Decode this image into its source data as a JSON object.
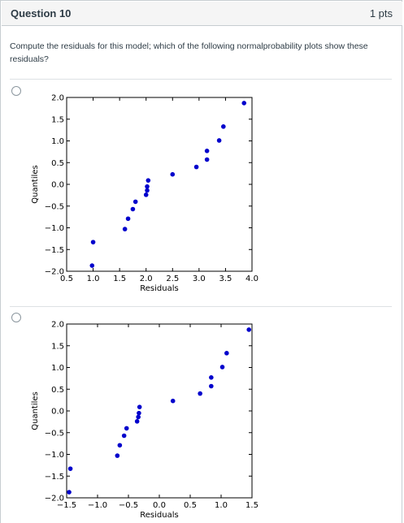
{
  "question": {
    "title": "Question 10",
    "points": "1 pts",
    "prompt": "Compute the residuals for this model; which of the following normalprobability plots show these residuals?"
  },
  "options": [
    {
      "chart_data": {
        "type": "scatter",
        "xlabel": "Residuals",
        "ylabel": "Quantiles",
        "xlim": [
          0.5,
          4.0
        ],
        "ylim": [
          -2.0,
          2.0
        ],
        "xticks": [
          "0.5",
          "1.0",
          "1.5",
          "2.0",
          "2.5",
          "3.0",
          "3.5",
          "4.0"
        ],
        "yticks": [
          "2.0",
          "1.5",
          "1.0",
          "0.5",
          "0.0",
          "−0.5",
          "−1.0",
          "−1.5",
          "−2.0"
        ],
        "x": [
          0.98,
          1.0,
          1.6,
          1.66,
          1.75,
          1.8,
          2.0,
          2.02,
          2.02,
          2.04,
          2.5,
          2.95,
          3.15,
          3.15,
          3.38,
          3.46,
          3.85
        ],
        "y": [
          -1.87,
          -1.33,
          -1.03,
          -0.79,
          -0.57,
          -0.4,
          -0.24,
          -0.14,
          -0.05,
          0.09,
          0.23,
          0.4,
          0.57,
          0.77,
          1.01,
          1.33,
          1.87
        ],
        "color": "#0000cc"
      }
    },
    {
      "chart_data": {
        "type": "scatter",
        "xlabel": "Residuals",
        "ylabel": "Quantiles",
        "xlim": [
          -1.5,
          1.5
        ],
        "ylim": [
          -2.0,
          2.0
        ],
        "xticks": [
          "−1.5",
          "−1.0",
          "−0.5",
          "0.0",
          "0.5",
          "1.0",
          "1.5"
        ],
        "yticks": [
          "2.0",
          "1.5",
          "1.0",
          "0.5",
          "0.0",
          "−0.5",
          "−1.0",
          "−1.5",
          "−2.0"
        ],
        "x": [
          -1.46,
          -1.44,
          -0.68,
          -0.64,
          -0.57,
          -0.53,
          -0.36,
          -0.34,
          -0.33,
          -0.32,
          0.22,
          0.66,
          0.84,
          0.84,
          1.02,
          1.09,
          1.45
        ],
        "y": [
          -1.87,
          -1.33,
          -1.03,
          -0.79,
          -0.57,
          -0.4,
          -0.24,
          -0.14,
          -0.05,
          0.09,
          0.23,
          0.4,
          0.57,
          0.77,
          1.01,
          1.33,
          1.87
        ],
        "color": "#0000cc"
      }
    }
  ]
}
